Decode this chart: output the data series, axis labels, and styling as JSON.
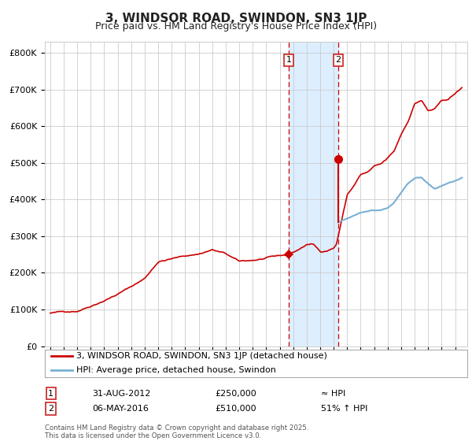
{
  "title": "3, WINDSOR ROAD, SWINDON, SN3 1JP",
  "subtitle": "Price paid vs. HM Land Registry's House Price Index (HPI)",
  "ylabel_ticks": [
    "£0",
    "£100K",
    "£200K",
    "£300K",
    "£400K",
    "£500K",
    "£600K",
    "£700K",
    "£800K"
  ],
  "ytick_vals": [
    0,
    100000,
    200000,
    300000,
    400000,
    500000,
    600000,
    700000,
    800000
  ],
  "ylim": [
    0,
    830000
  ],
  "red_line_color": "#cc0000",
  "blue_line_color": "#7ab0d4",
  "shaded_color": "#ddeeff",
  "vline_color": "#cc0000",
  "grid_color": "#cccccc",
  "bg_color": "#ffffff",
  "legend_label_red": "3, WINDSOR ROAD, SWINDON, SN3 1JP (detached house)",
  "legend_label_blue": "HPI: Average price, detached house, Swindon",
  "annotation1_label": "1",
  "annotation1_date": "31-AUG-2012",
  "annotation1_price": "£250,000",
  "annotation1_hpi": "≈ HPI",
  "annotation1_year": 2012.67,
  "annotation1_value": 250000,
  "annotation2_label": "2",
  "annotation2_date": "06-MAY-2016",
  "annotation2_price": "£510,000",
  "annotation2_hpi": "51% ↑ HPI",
  "annotation2_year": 2016.35,
  "annotation2_value": 510000,
  "copyright_text": "Contains HM Land Registry data © Crown copyright and database right 2025.\nThis data is licensed under the Open Government Licence v3.0.",
  "xlim_left": 1994.6,
  "xlim_right": 2025.9,
  "xtick_start": 1995,
  "xtick_end": 2025
}
